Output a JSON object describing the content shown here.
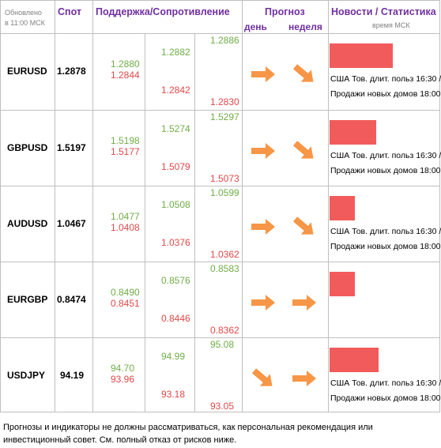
{
  "header": {
    "updated_label_line1": "Обновлено",
    "updated_label_line2": "в 11:00 МСК",
    "spot": "Спот",
    "sr": "Поддержка/Сопротивление",
    "forecast": "Прогноз",
    "day": "день",
    "week": "неделя",
    "news": "Новости / Статистика",
    "time_msk": "время МСК"
  },
  "rows": [
    {
      "pair": "EURUSD",
      "spot": "1.2878",
      "c1a": "1.2880",
      "c1b": "1.2844",
      "c2a": "1.2882",
      "c2b": "1.2842",
      "c3a": "1.2886",
      "c3b": "1.2830",
      "day": "right",
      "week": "down-right",
      "bar": 0.74,
      "news1": "США Тов. длит. польз 16:30 /",
      "news2": "Продажи новых домов 18:00"
    },
    {
      "pair": "GBPUSD",
      "spot": "1.5197",
      "c1a": "1.5198",
      "c1b": "1.5177",
      "c2a": "1.5274",
      "c2b": "1.5079",
      "c3a": "1.5297",
      "c3b": "1.5073",
      "day": "right",
      "week": "down-right",
      "bar": 0.55,
      "news1": "США Тов. длит. польз 16:30 /",
      "news2": "Продажи новых домов 18:00"
    },
    {
      "pair": "AUDUSD",
      "spot": "1.0467",
      "c1a": "1.0477",
      "c1b": "1.0408",
      "c2a": "1.0508",
      "c2b": "1.0376",
      "c3a": "1.0599",
      "c3b": "1.0362",
      "day": "right",
      "week": "down-right",
      "bar": 0.3,
      "news1": "США Тов. длит. польз 16:30 /",
      "news2": "Продажи новых домов 18:00"
    },
    {
      "pair": "EURGBP",
      "spot": "0.8474",
      "c1a": "0.8490",
      "c1b": "0.8451",
      "c2a": "0.8576",
      "c2b": "0.8446",
      "c3a": "0.8583",
      "c3b": "0.8362",
      "day": "right",
      "week": "right",
      "bar": 0.3,
      "news1": "",
      "news2": ""
    },
    {
      "pair": "USDJPY",
      "spot": "94.19",
      "c1a": "94.70",
      "c1b": "93.96",
      "c2a": "94.99",
      "c2b": "93.18",
      "c3a": "95.08",
      "c3b": "93.05",
      "day": "down-right",
      "week": "right",
      "bar": 0.57,
      "news1": "США Тов. длит. польз 16:30 /",
      "news2": "Продажи новых домов 18:00"
    }
  ],
  "colors": {
    "support": "#70ad47",
    "resistance": "#e04848",
    "arrow": "#f79646",
    "bar": "#f15b5b",
    "header": "#7030a0"
  },
  "footer": {
    "line1": "Прогнозы и индикаторы не должны рассматриваться, как персональная рекомендация или",
    "line2": "инвестиционный совет. См. полный отказ от рисков ниже."
  }
}
